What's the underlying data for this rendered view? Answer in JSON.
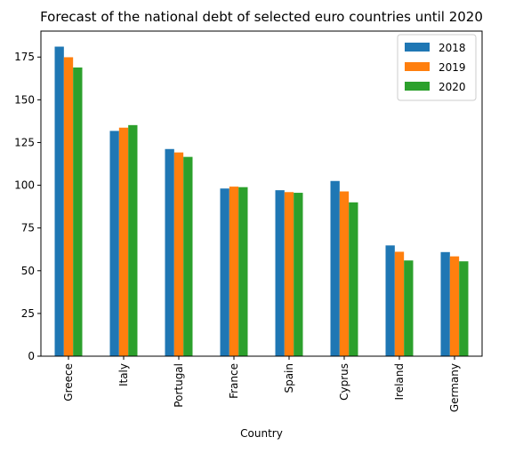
{
  "chart_data": {
    "type": "bar",
    "title": "Forecast of the national debt of selected euro countries until 2020",
    "xlabel": "Country",
    "ylabel": "",
    "categories": [
      "Greece",
      "Italy",
      "Portugal",
      "France",
      "Spain",
      "Cyprus",
      "Ireland",
      "Germany"
    ],
    "series": [
      {
        "name": "2018",
        "color": "#1f77b4",
        "values": [
          181.1,
          131.8,
          121.2,
          98.1,
          97.1,
          102.5,
          64.8,
          60.9
        ]
      },
      {
        "name": "2019",
        "color": "#ff7f0e",
        "values": [
          174.9,
          133.7,
          119.2,
          99.2,
          96.0,
          96.4,
          61.1,
          58.4
        ]
      },
      {
        "name": "2020",
        "color": "#2ca02c",
        "values": [
          168.9,
          135.2,
          116.6,
          98.9,
          95.6,
          90.0,
          56.0,
          55.5
        ]
      }
    ],
    "yticks": [
      0,
      25,
      50,
      75,
      100,
      125,
      150,
      175
    ],
    "ylim": [
      0,
      190.2
    ],
    "grid": false,
    "legend_position": "top-right"
  }
}
